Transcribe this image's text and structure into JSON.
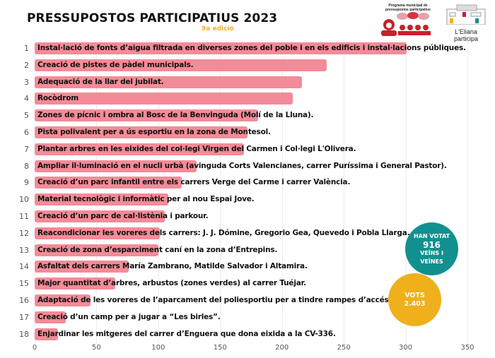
{
  "header": {
    "title": "PRESSUPOSTOS PARTICIPATIUS 2023",
    "subtitle": "9a edició",
    "logo_program_text": "Programa municipal de pressupostos participatius",
    "logo_town_line1": "L'Eliana",
    "logo_town_line2": "participa"
  },
  "stats": {
    "voters_label_top": "HAN VOTAT",
    "voters_count": "916",
    "voters_label_bottom": "VEÏNS I VEÏNES",
    "votes_label": "VOTS",
    "votes_count": "2.403",
    "voters_color": "#129090",
    "votes_color": "#efb01b"
  },
  "colors": {
    "bar": "#f48b98"
  },
  "chart_data": {
    "type": "bar",
    "orientation": "horizontal",
    "title": "PRESSUPOSTOS PARTICIPATIUS 2023",
    "subtitle": "9a edició",
    "xlabel": "",
    "ylabel": "",
    "xlim": [
      0,
      350
    ],
    "xticks": [
      0,
      50,
      100,
      150,
      200,
      250,
      300,
      350
    ],
    "grid": true,
    "legend": "none",
    "ranks": [
      1,
      2,
      3,
      4,
      5,
      6,
      7,
      8,
      9,
      10,
      11,
      12,
      13,
      14,
      15,
      16,
      17,
      18
    ],
    "categories": [
      "Instal·lació de fonts d’aigua filtrada en diverses zones del poble i en els edificis i instal·lacions públiques.",
      "Creació de pistes de pàdel municipals.",
      "Adequació de la llar del jubilat.",
      "Rocòdrom",
      "Zones de pícnic i ombra al Bosc de la Benvinguda (Molí de la Lluna).",
      "Pista polivalent per a ús esportiu en la zona de Montesol.",
      "Plantar arbres en les eixides del col·legi Virgen del Carmen i Col·legi L'Olivera.",
      "Ampliar il·luminació en el nucli urbà (avinguda Corts Valencianes, carrer Puríssima i General Pastor).",
      "Creació d’un parc infantil entre els carrers Verge del Carme i carrer València.",
      "Material tecnològic i informàtic per al nou Espai Jove.",
      "Creació d’un parc de cal·listènia i parkour.",
      "Reacondicionar les voreres dels carrers: J. J. Dómine, Gregorio Gea, Quevedo i Pobla Llarga.",
      "Creació de zona d’esparciment caní en la zona d’Entrepins.",
      "Asfaltat dels carrers María Zambrano, Matilde Salvador i Altamira.",
      "Major quantitat d’arbres, arbustos (zones verdes) al carrer Tuéjar.",
      "Adaptació de les voreres de l’aparcament del poliesportiu per a tindre rampes d’accés.",
      "Creació d’un camp per a jugar a “Les birles”.",
      "Enjardinar les mitgeres del carrer d’Enguera que dona eixida a la CV-336."
    ],
    "values": [
      301,
      236,
      216,
      209,
      181,
      172,
      169,
      131,
      119,
      108,
      105,
      101,
      100,
      76,
      65,
      45,
      25,
      19
    ]
  }
}
